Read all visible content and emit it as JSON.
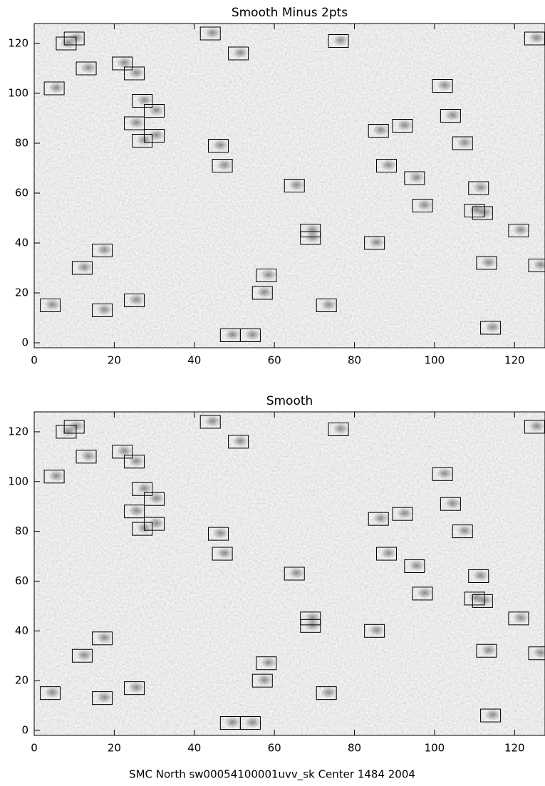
{
  "charts": [
    {
      "type": "scatter",
      "title": "Smooth Minus 2pts",
      "marker": "square",
      "color": "#000000",
      "x": [
        8,
        10,
        13,
        5,
        22,
        25,
        27,
        30,
        25,
        27,
        30,
        44,
        51,
        46,
        47,
        65,
        76,
        102,
        104,
        107,
        86,
        92,
        88,
        95,
        97,
        111,
        110,
        112,
        121,
        125,
        113,
        126,
        69,
        69,
        85,
        17,
        12,
        4,
        17,
        25,
        58,
        57,
        73,
        49,
        54,
        114
      ],
      "y": [
        120,
        122,
        110,
        102,
        112,
        108,
        97,
        93,
        88,
        81,
        83,
        124,
        116,
        79,
        71,
        63,
        121,
        103,
        91,
        80,
        85,
        87,
        71,
        66,
        55,
        62,
        53,
        52,
        45,
        122,
        32,
        31,
        45,
        42,
        40,
        37,
        30,
        15,
        13,
        17,
        27,
        20,
        15,
        3,
        3,
        6
      ],
      "xlim": [
        0,
        127.6
      ],
      "ylim": [
        -2,
        128
      ],
      "xticks": [
        0,
        20,
        40,
        60,
        80,
        100,
        120
      ],
      "yticks": [
        0,
        20,
        40,
        60,
        80,
        100,
        120
      ]
    },
    {
      "type": "scatter",
      "title": "Smooth",
      "marker": "square",
      "color": "#000000",
      "x": [
        8,
        10,
        13,
        5,
        22,
        25,
        27,
        30,
        25,
        27,
        30,
        44,
        51,
        46,
        47,
        65,
        76,
        102,
        104,
        107,
        86,
        92,
        88,
        95,
        97,
        111,
        110,
        112,
        121,
        125,
        113,
        126,
        69,
        69,
        85,
        17,
        12,
        4,
        17,
        25,
        58,
        57,
        73,
        49,
        54,
        114
      ],
      "y": [
        120,
        122,
        110,
        102,
        112,
        108,
        97,
        93,
        88,
        81,
        83,
        124,
        116,
        79,
        71,
        63,
        121,
        103,
        91,
        80,
        85,
        87,
        71,
        66,
        55,
        62,
        53,
        52,
        45,
        122,
        32,
        31,
        45,
        42,
        40,
        37,
        30,
        15,
        13,
        17,
        27,
        20,
        15,
        3,
        3,
        6
      ],
      "xlim": [
        0,
        127.6
      ],
      "ylim": [
        -2,
        128
      ],
      "xticks": [
        0,
        20,
        40,
        60,
        80,
        100,
        120
      ],
      "yticks": [
        0,
        20,
        40,
        60,
        80,
        100,
        120
      ]
    }
  ],
  "footer": "SMC North sw00054100001uvv_sk Center 1484 2004"
}
